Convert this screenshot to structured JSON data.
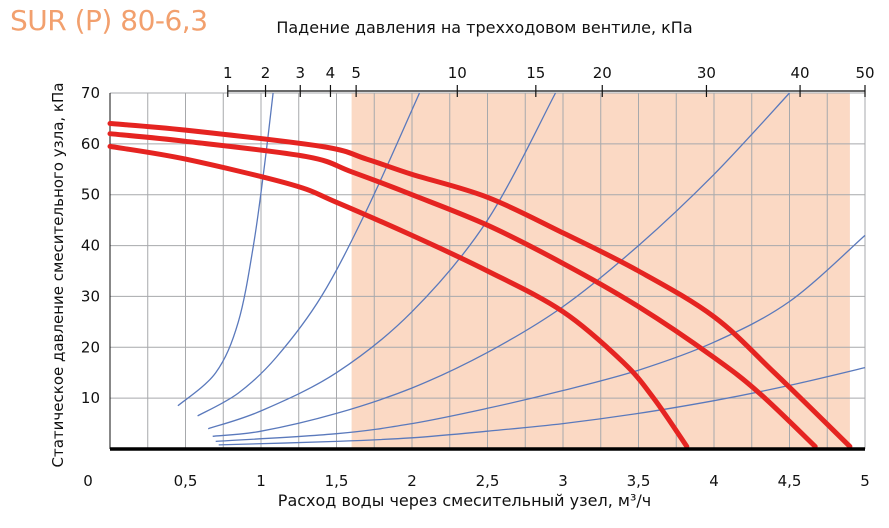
{
  "brand_title": "SUR (P) 80-6,3",
  "chart_data": {
    "type": "line",
    "title": "Падение давления на трехходовом вентиле, кПа",
    "xlabel": "Расход воды через смесительный узел, м³/ч",
    "ylabel": "Статическое давление смесительного узла, кПа",
    "xlim": [
      0,
      5
    ],
    "ylim": [
      0,
      70
    ],
    "x_ticks": [
      "0",
      "0,5",
      "1",
      "1,5",
      "2",
      "2,5",
      "3",
      "3,5",
      "4",
      "4,5",
      "5"
    ],
    "y_ticks": [
      "10",
      "20",
      "30",
      "40",
      "50",
      "60",
      "70"
    ],
    "top_axis": {
      "ticks": [
        {
          "x": 0.78,
          "label": "1"
        },
        {
          "x": 1.03,
          "label": "2"
        },
        {
          "x": 1.26,
          "label": "3"
        },
        {
          "x": 1.46,
          "label": "4"
        },
        {
          "x": 1.63,
          "label": "5"
        },
        {
          "x": 2.3,
          "label": "10"
        },
        {
          "x": 2.82,
          "label": "15"
        },
        {
          "x": 3.26,
          "label": "20"
        },
        {
          "x": 3.95,
          "label": "30"
        },
        {
          "x": 4.57,
          "label": "40"
        },
        {
          "x": 5.0,
          "label": "50"
        }
      ]
    },
    "shaded_region": {
      "x_from": 1.6,
      "x_to": 4.9,
      "color": "#fbd9c4"
    },
    "grid": true,
    "pump_curves": {
      "color": "#e52421",
      "series": [
        {
          "points": [
            [
              0,
              59.5
            ],
            [
              0.5,
              57
            ],
            [
              1.2,
              52
            ],
            [
              1.5,
              48.5
            ],
            [
              2,
              42
            ],
            [
              2.5,
              35
            ],
            [
              3,
              27
            ],
            [
              3.4,
              17
            ],
            [
              3.6,
              10
            ],
            [
              3.82,
              0.5
            ]
          ]
        },
        {
          "points": [
            [
              0,
              62
            ],
            [
              0.5,
              60.5
            ],
            [
              1.3,
              57.5
            ],
            [
              1.6,
              54.5
            ],
            [
              2,
              50
            ],
            [
              2.5,
              44
            ],
            [
              3,
              36.5
            ],
            [
              3.5,
              28
            ],
            [
              4,
              18
            ],
            [
              4.3,
              11
            ],
            [
              4.67,
              0.5
            ]
          ]
        },
        {
          "points": [
            [
              0,
              64
            ],
            [
              0.5,
              62.7
            ],
            [
              1.4,
              59.5
            ],
            [
              1.7,
              57
            ],
            [
              2,
              54
            ],
            [
              2.5,
              49.5
            ],
            [
              3,
              42.5
            ],
            [
              3.5,
              35
            ],
            [
              4,
              26
            ],
            [
              4.4,
              15
            ],
            [
              4.9,
              0.5
            ]
          ]
        }
      ]
    },
    "valve_curves": {
      "color": "#5a79bc",
      "series": [
        {
          "points": [
            [
              0.45,
              8.5
            ],
            [
              0.7,
              15
            ],
            [
              0.85,
              25
            ],
            [
              0.95,
              40
            ],
            [
              1.02,
              55
            ],
            [
              1.08,
              70
            ]
          ]
        },
        {
          "points": [
            [
              0.58,
              6.5
            ],
            [
              0.85,
              11
            ],
            [
              1.1,
              18
            ],
            [
              1.4,
              30
            ],
            [
              1.7,
              47
            ],
            [
              2.05,
              70
            ]
          ]
        },
        {
          "points": [
            [
              0.65,
              4
            ],
            [
              1,
              7.5
            ],
            [
              1.5,
              15
            ],
            [
              2,
              27
            ],
            [
              2.5,
              45
            ],
            [
              2.95,
              70
            ]
          ]
        },
        {
          "points": [
            [
              0.68,
              2.5
            ],
            [
              1,
              3.5
            ],
            [
              1.5,
              7
            ],
            [
              2,
              12
            ],
            [
              2.5,
              19
            ],
            [
              3,
              28
            ],
            [
              3.5,
              40
            ],
            [
              4,
              54
            ],
            [
              4.5,
              70
            ]
          ]
        },
        {
          "points": [
            [
              0.7,
              1.5
            ],
            [
              1.5,
              3
            ],
            [
              2,
              5
            ],
            [
              2.5,
              8
            ],
            [
              3,
              11.5
            ],
            [
              3.5,
              15.5
            ],
            [
              4,
              21
            ],
            [
              4.5,
              29
            ],
            [
              5,
              42
            ]
          ]
        },
        {
          "points": [
            [
              0.72,
              0.8
            ],
            [
              1.5,
              1.5
            ],
            [
              2,
              2.2
            ],
            [
              2.5,
              3.5
            ],
            [
              3,
              5
            ],
            [
              3.5,
              7
            ],
            [
              4,
              9.5
            ],
            [
              4.5,
              12.5
            ],
            [
              5,
              16
            ]
          ]
        }
      ]
    }
  }
}
